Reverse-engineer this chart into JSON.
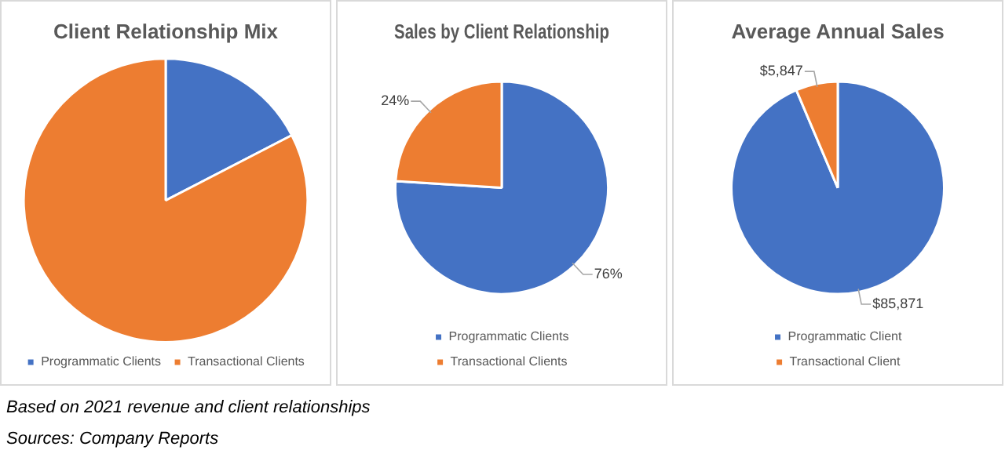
{
  "chart_data": [
    {
      "type": "pie",
      "title": "Client Relationship Mix",
      "categories": [
        "Programmatic Clients",
        "Transactional Clients"
      ],
      "values": [
        17.4,
        82.6
      ],
      "colors": [
        "#4472c4",
        "#ed7d31"
      ],
      "legend": "bottom",
      "annotations": [
        "Based on 2021 revenue and client relationships",
        "Sources:  Company Reports"
      ]
    },
    {
      "type": "pie",
      "title": "Sales by Client Relationship",
      "categories": [
        "Programmatic Clients",
        "Transactional Clients"
      ],
      "values": [
        76,
        24
      ],
      "colors": [
        "#4472c4",
        "#ed7d31"
      ],
      "legend": "bottom",
      "value_labels": [
        "76%",
        "24%"
      ]
    },
    {
      "type": "pie",
      "title": "Average Annual Sales",
      "categories": [
        "Programmatic Client",
        "Transactional Client"
      ],
      "values": [
        85871,
        5847
      ],
      "colors": [
        "#4472c4",
        "#ed7d31"
      ],
      "legend": "bottom",
      "value_labels": [
        "$85,871",
        "$5,847"
      ]
    }
  ]
}
